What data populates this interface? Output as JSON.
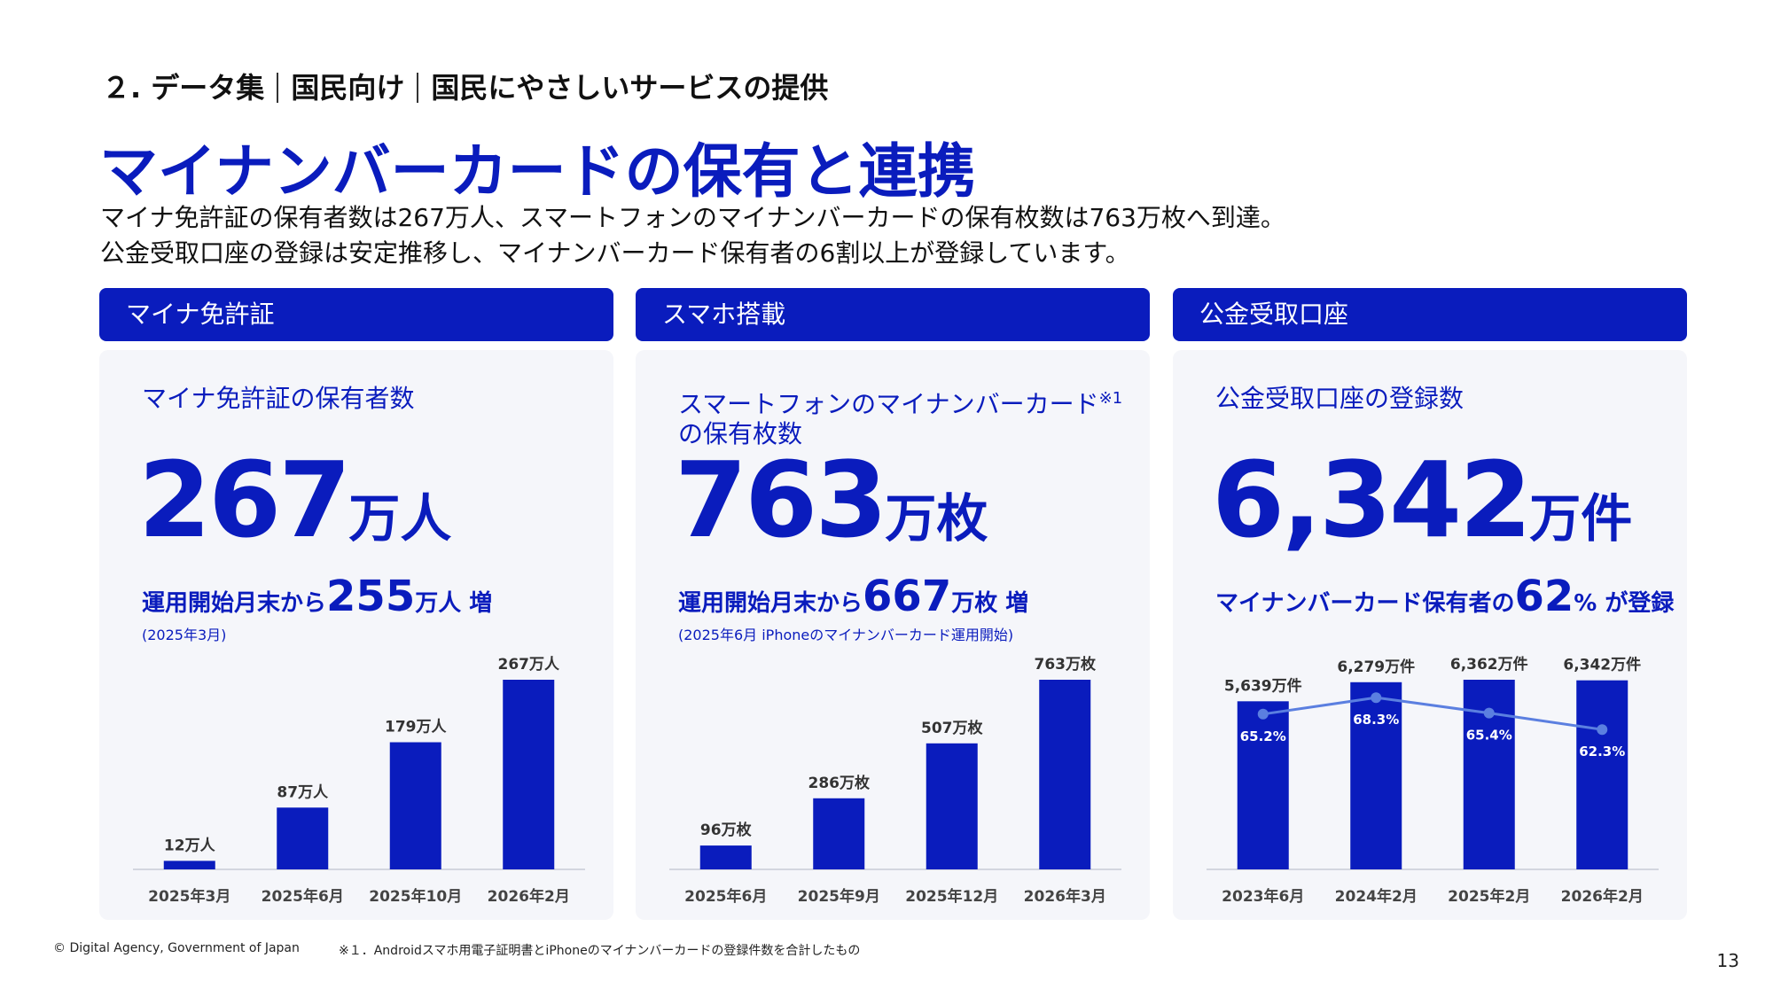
{
  "header": {
    "breadcrumb": [
      "２. データ集",
      "国民向け",
      "国民にやさしいサービスの提供"
    ],
    "title": "マイナンバーカードの保有と連携",
    "lead": [
      "マイナ免許証の保有者数は267万人、スマートフォンのマイナンバーカードの保有枚数は763万枚へ到達。",
      "公金受取口座の登録は安定推移し、マイナンバーカード保有者の6割以上が登録しています。"
    ]
  },
  "panels": [
    {
      "header": "マイナ免許証",
      "label": "マイナ免許証の保有者数",
      "big_number": "267",
      "big_unit": "万人",
      "sub_prefix": "運用開始月末から",
      "sub_value": "255",
      "sub_unit": "万人",
      "sub_suffix": " 増",
      "note": "(2025年3月)"
    },
    {
      "header": "スマホ搭載",
      "label_line1": "スマートフォンのマイナンバーカード",
      "label_sup": "※1",
      "label_line2": "の保有枚数",
      "big_number": "763",
      "big_unit": "万枚",
      "sub_prefix": "運用開始月末から",
      "sub_value": "667",
      "sub_unit": "万枚",
      "sub_suffix": " 増",
      "note": "(2025年6月 iPhoneのマイナンバーカード運用開始)"
    },
    {
      "header": "公金受取口座",
      "label": "公金受取口座の登録数",
      "big_number": "6,342",
      "big_unit": "万件",
      "sub_prefix": "マイナンバーカード保有者の",
      "sub_value": "62",
      "sub_unit": "%",
      "sub_suffix": " が登録"
    }
  ],
  "chart_data": [
    {
      "type": "bar",
      "categories": [
        "2025年3月",
        "2025年6月",
        "2025年10月",
        "2026年2月"
      ],
      "values": [
        12,
        87,
        179,
        267
      ],
      "data_labels": [
        "12万人",
        "87万人",
        "179万人",
        "267万人"
      ],
      "ylim": [
        0,
        267
      ],
      "color": "#0a1cbd"
    },
    {
      "type": "bar",
      "categories": [
        "2025年6月",
        "2025年9月",
        "2025年12月",
        "2026年3月"
      ],
      "values": [
        96,
        286,
        507,
        763
      ],
      "data_labels": [
        "96万枚",
        "286万枚",
        "507万枚",
        "763万枚"
      ],
      "ylim": [
        0,
        763
      ],
      "color": "#0a1cbd"
    },
    {
      "type": "bar",
      "categories": [
        "2023年6月",
        "2024年2月",
        "2025年2月",
        "2026年2月"
      ],
      "values": [
        5639,
        6279,
        6362,
        6342
      ],
      "data_labels": [
        "5,639万件",
        "6,279万件",
        "6,362万件",
        "6,342万件"
      ],
      "ylim": [
        0,
        6362
      ],
      "color": "#0a1cbd",
      "line_series": {
        "values": [
          65.2,
          68.3,
          65.4,
          62.3
        ],
        "labels": [
          "65.2%",
          "68.3%",
          "65.4%",
          "62.3%"
        ],
        "color": "#5b7fe0"
      }
    }
  ],
  "footer": {
    "copyright": "© Digital Agency, Government of Japan",
    "footnote": "※１．Androidスマホ用電子証明書とiPhoneのマイナンバーカードの登録件数を合計したもの",
    "page_number": "13"
  }
}
